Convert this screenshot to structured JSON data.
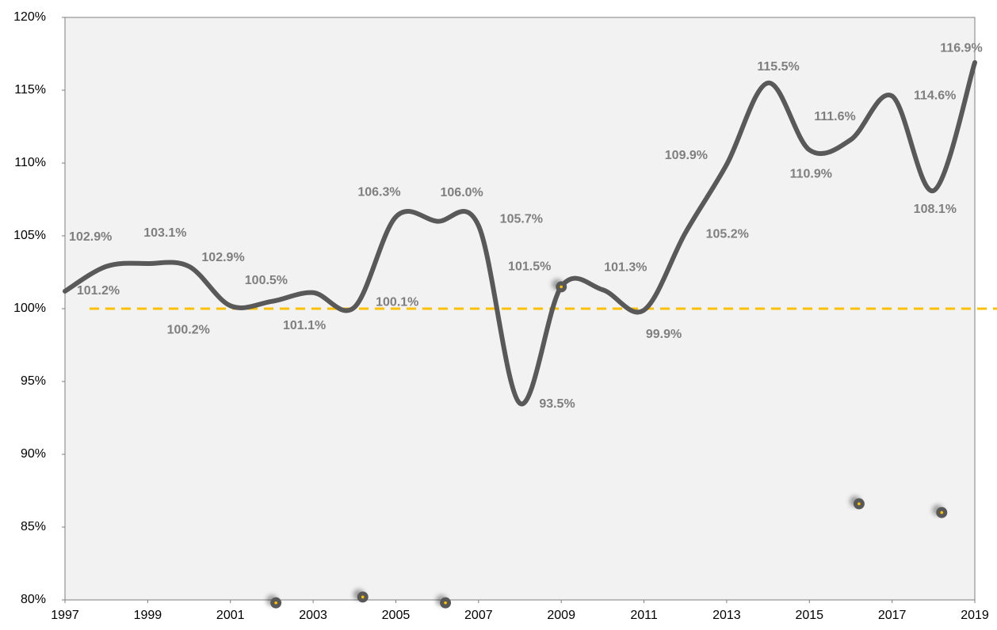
{
  "chart_data": {
    "type": "line",
    "x": [
      1997,
      1998,
      1999,
      2000,
      2001,
      2002,
      2003,
      2004,
      2005,
      2006,
      2007,
      2008,
      2009,
      2010,
      2011,
      2012,
      2013,
      2014,
      2015,
      2016,
      2017,
      2018,
      2019
    ],
    "series": [
      {
        "color": "#595959",
        "values": [
          101.2,
          102.9,
          103.1,
          102.9,
          100.2,
          100.5,
          101.1,
          100.1,
          106.3,
          106.0,
          105.7,
          93.5,
          101.5,
          101.3,
          99.9,
          105.2,
          109.9,
          115.5,
          110.9,
          111.6,
          114.6,
          108.1,
          116.9
        ],
        "value_labels": [
          "101.2%",
          "102.9%",
          "103.1%",
          "102.9%",
          "100.2%",
          "100.5%",
          "101.1%",
          "100.1%",
          "106.3%",
          "106.0%",
          "105.7%",
          "93.5%",
          "101.5%",
          "101.3%",
          "99.9%",
          "105.2%",
          "109.9%",
          "115.5%",
          "110.9%",
          "111.6%",
          "114.6%",
          "108.1%",
          "116.9%"
        ]
      }
    ],
    "markers": {
      "x": [
        2002.1,
        2004.2,
        2006.2,
        2009.0,
        2016.2,
        2018.2
      ],
      "values": [
        79.8,
        80.2,
        79.8,
        101.5,
        86.6,
        86.0
      ],
      "color": "#595959"
    },
    "reference_line": {
      "value": 100,
      "color": "#ffc000"
    },
    "xlim": [
      1997,
      2019
    ],
    "xticks": [
      1997,
      1999,
      2001,
      2003,
      2005,
      2007,
      2009,
      2011,
      2013,
      2015,
      2017,
      2019
    ],
    "ylim": [
      80,
      120
    ],
    "yticks": [
      {
        "value": 80,
        "label": "80%"
      },
      {
        "value": 85,
        "label": "85%"
      },
      {
        "value": 90,
        "label": "90%"
      },
      {
        "value": 95,
        "label": "95%"
      },
      {
        "value": 100,
        "label": "100%"
      },
      {
        "value": 105,
        "label": "105%"
      },
      {
        "value": 110,
        "label": "110%"
      },
      {
        "value": 115,
        "label": "115%"
      },
      {
        "value": 120,
        "label": "120%"
      }
    ],
    "grid": false
  }
}
